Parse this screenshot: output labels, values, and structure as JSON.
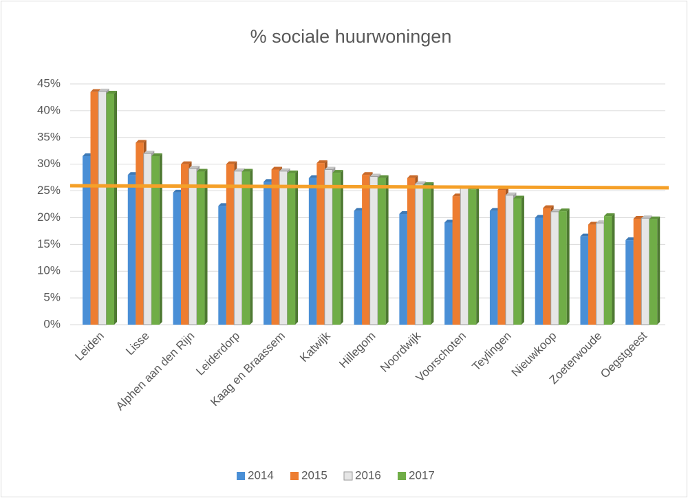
{
  "chart_data": {
    "type": "bar3d",
    "title": "% sociale huurwoningen",
    "categories": [
      "Leiden",
      "Lisse",
      "Alphen aan den Rijn",
      "Leiderdorp",
      "Kaag en Braassem",
      "Katwijk",
      "Hillegom",
      "Noordwijk",
      "Voorschoten",
      "Teylingen",
      "Nieuwkoop",
      "Zoeterwoude",
      "Oegstgeest"
    ],
    "series": [
      {
        "name": "2014",
        "color": "#4a8fd6",
        "values": [
          31.5,
          28,
          24.7,
          22.2,
          26.7,
          27.4,
          21.3,
          20.7,
          19.1,
          21.3,
          20,
          16.5,
          15.8
        ]
      },
      {
        "name": "2015",
        "color": "#ed7d31",
        "values": [
          43.5,
          34,
          30,
          30,
          29,
          30.2,
          28,
          27.4,
          24,
          25.2,
          21.8,
          18.7,
          19.8
        ]
      },
      {
        "name": "2016",
        "color": "#e6e6e6",
        "values": [
          43.6,
          32,
          29.2,
          28.7,
          28.7,
          29,
          27.7,
          26.3,
          25.5,
          24.2,
          21.1,
          19,
          19.9
        ]
      },
      {
        "name": "2017",
        "color": "#70ad47",
        "values": [
          43.2,
          31.5,
          28.6,
          28.6,
          28.3,
          28.4,
          27.4,
          26.1,
          25.3,
          23.6,
          21.2,
          20.3,
          19.7
        ]
      }
    ],
    "ylim": [
      0,
      45
    ],
    "yticks": [
      {
        "value": 0,
        "label": "0%"
      },
      {
        "value": 5,
        "label": "5%"
      },
      {
        "value": 10,
        "label": "10%"
      },
      {
        "value": 15,
        "label": "15%"
      },
      {
        "value": 20,
        "label": "20%"
      },
      {
        "value": 25,
        "label": "25%"
      },
      {
        "value": 30,
        "label": "30%"
      },
      {
        "value": 35,
        "label": "35%"
      },
      {
        "value": 40,
        "label": "40%"
      },
      {
        "value": 45,
        "label": "45%"
      }
    ],
    "grid": true,
    "legend": "bottom"
  }
}
